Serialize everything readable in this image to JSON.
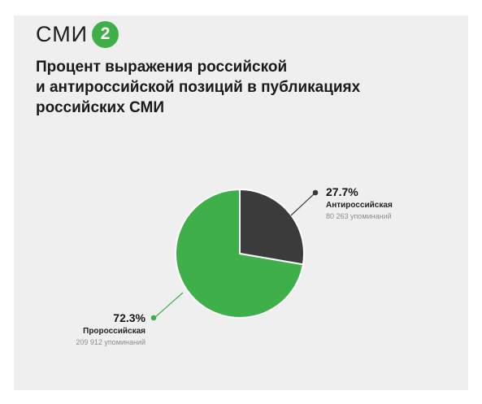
{
  "logo": {
    "text": "СМИ",
    "badge": "2",
    "badge_color": "#3faf4a"
  },
  "title_lines": [
    "Процент выражения российской",
    "и антироссийской позиций в публикациях",
    "российских СМИ"
  ],
  "chart_data": {
    "type": "pie",
    "start_angle_deg": 0,
    "direction": "clockwise",
    "slices": [
      {
        "label": "Антироссийская",
        "percent": 27.7,
        "percent_label": "27.7%",
        "mentions": "80 263 упоминаний",
        "color": "#3b3b3b"
      },
      {
        "label": "Пророссийская",
        "percent": 72.3,
        "percent_label": "72.3%",
        "mentions": "209 912 упоминаний",
        "color": "#3faf4a"
      }
    ],
    "colors": {
      "leader_dark": "#3b3b3b",
      "leader_green": "#3faf4a"
    }
  }
}
